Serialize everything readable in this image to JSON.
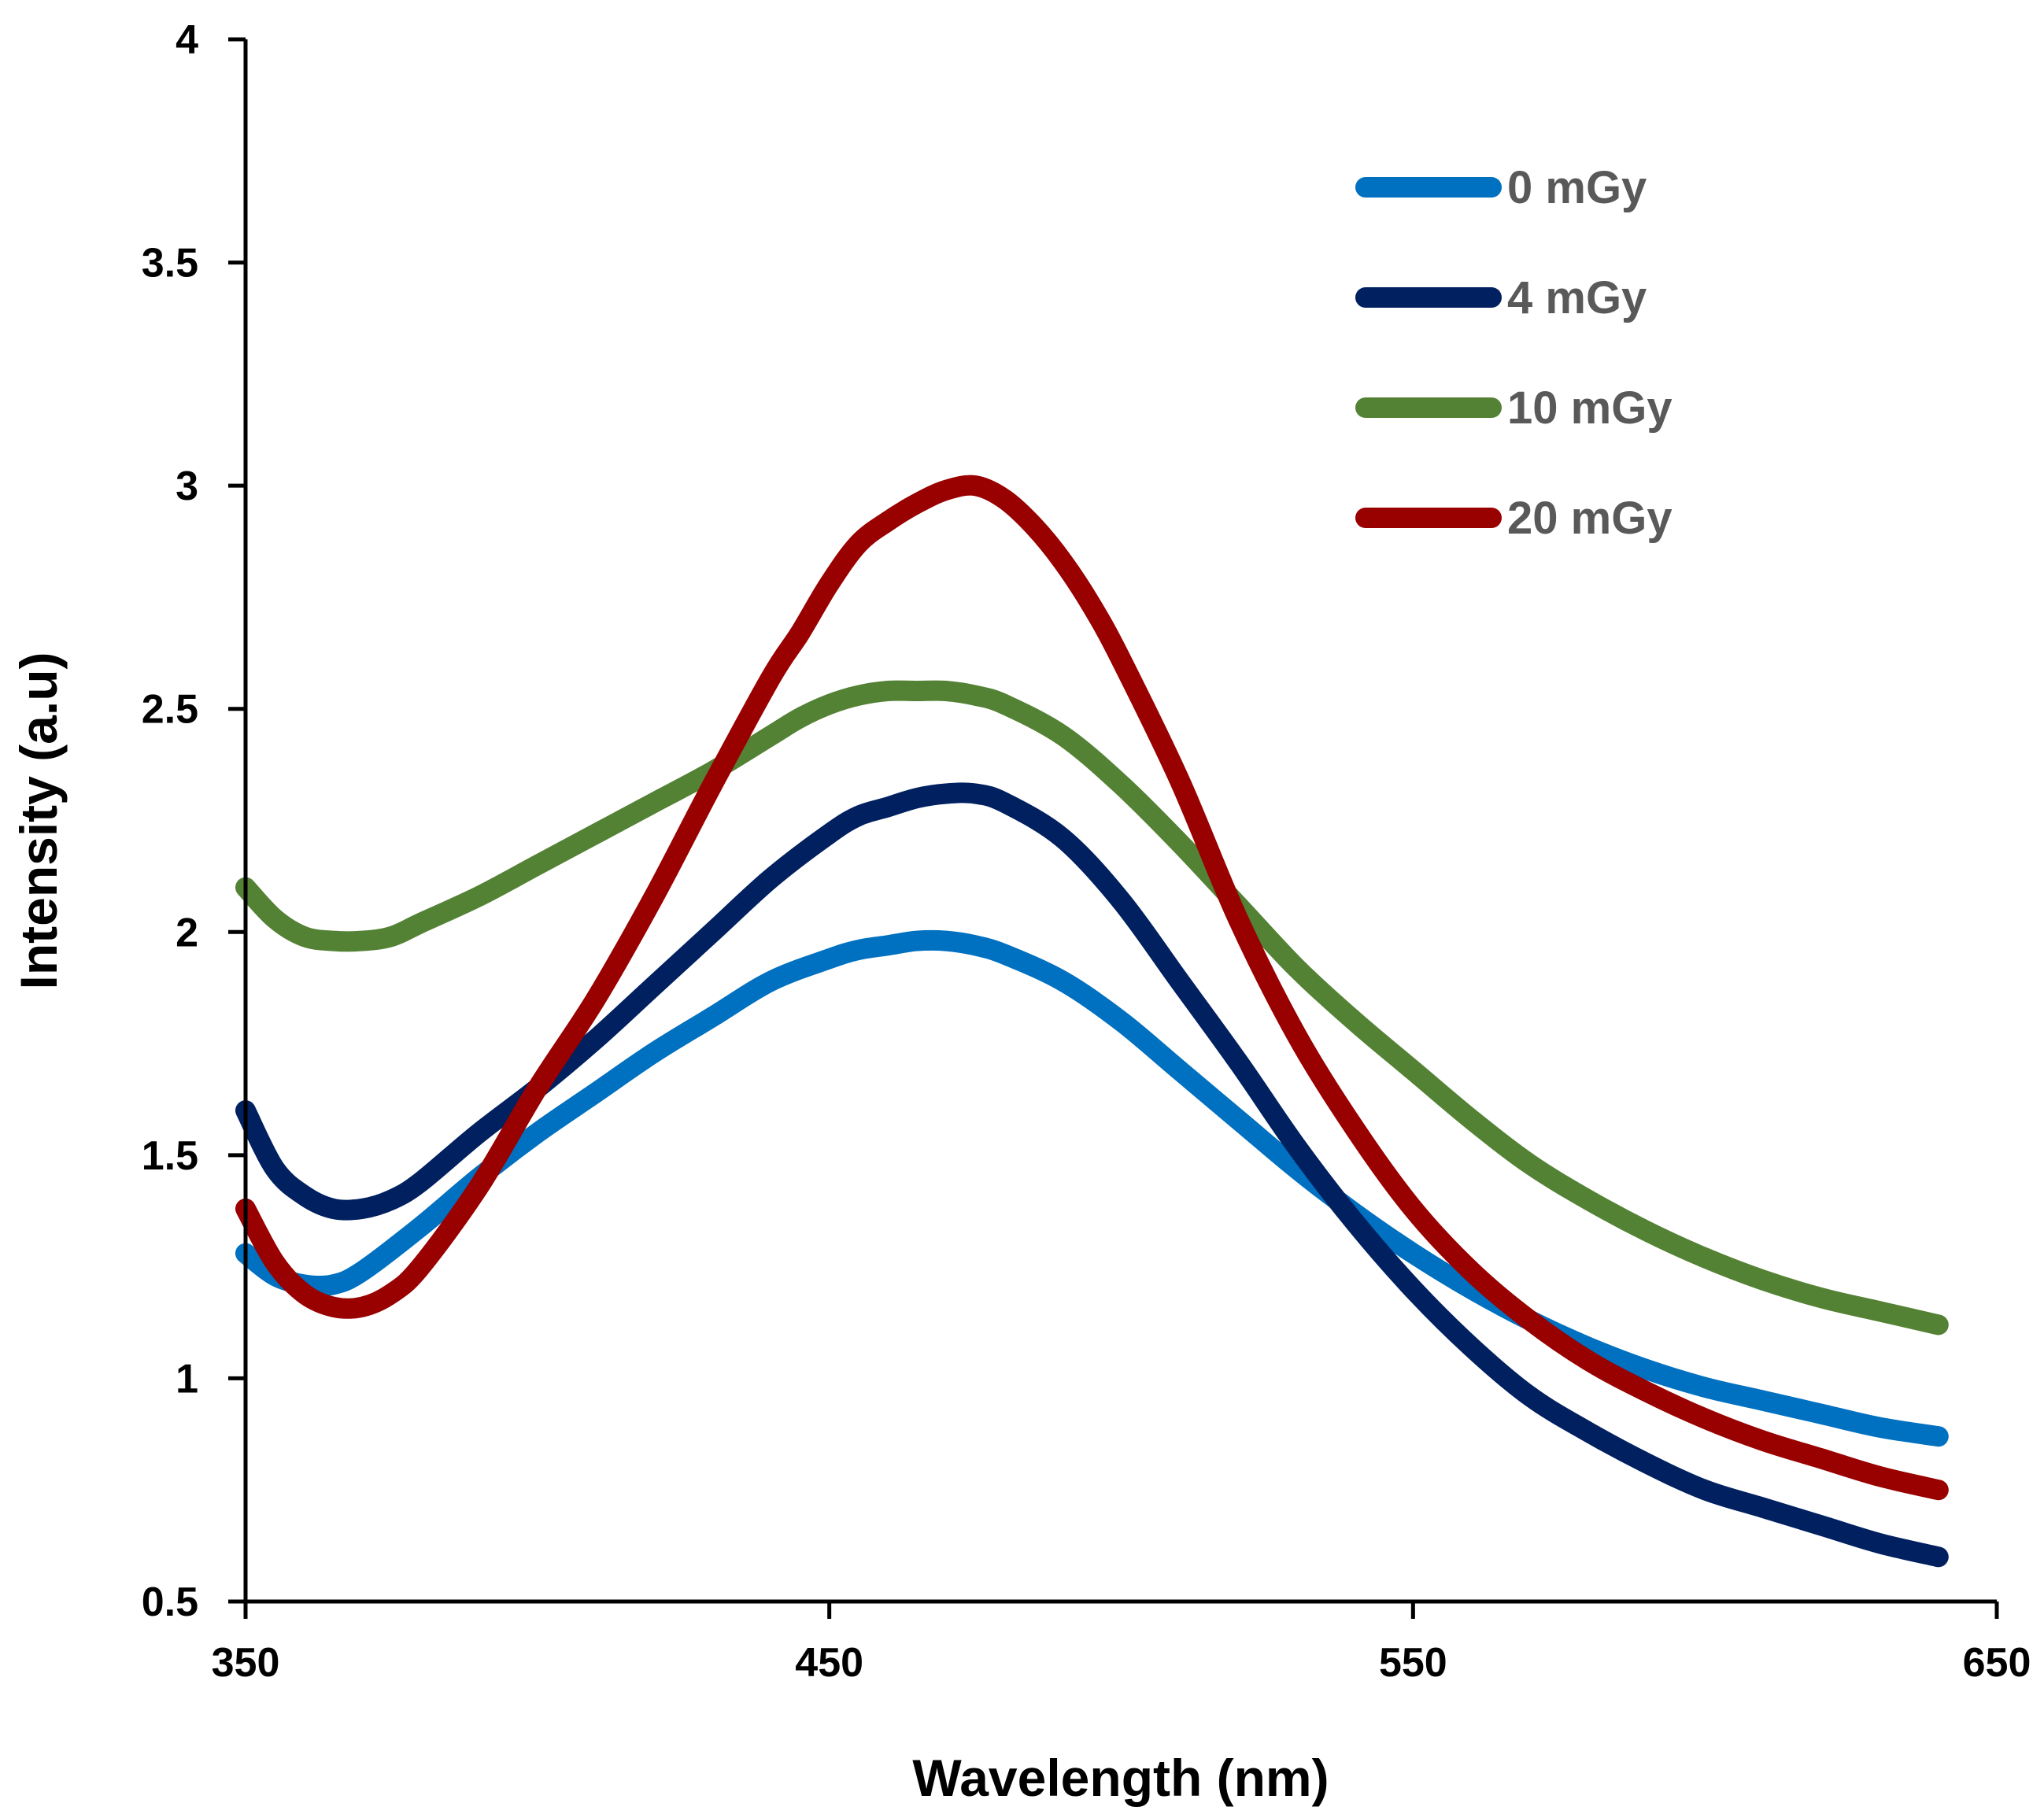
{
  "chart_data": {
    "type": "line",
    "title": "",
    "xlabel": "Wavelength (nm)",
    "ylabel": "Intensity (a.u)",
    "xlim": [
      350,
      650
    ],
    "ylim": [
      0.5,
      4
    ],
    "xticks": [
      350,
      450,
      550,
      650
    ],
    "xtick_labels": [
      "350",
      "450",
      "550",
      "650"
    ],
    "yticks": [
      0.5,
      1,
      1.5,
      2,
      2.5,
      3,
      3.5,
      4
    ],
    "ytick_labels": [
      "0.5",
      "1",
      "1.5",
      "2",
      "2.5",
      "3",
      "3.5",
      "4"
    ],
    "grid": false,
    "legend_position": "top-right",
    "series": [
      {
        "name": "0 mGy",
        "color": "#0070C0",
        "x": [
          350,
          355,
          360,
          365,
          370,
          380,
          390,
          400,
          410,
          420,
          430,
          440,
          450,
          455,
          460,
          465,
          470,
          475,
          480,
          490,
          500,
          510,
          520,
          530,
          540,
          550,
          560,
          570,
          580,
          590,
          600,
          610,
          620,
          630,
          640
        ],
        "y": [
          1.28,
          1.23,
          1.21,
          1.21,
          1.24,
          1.34,
          1.45,
          1.55,
          1.64,
          1.73,
          1.81,
          1.89,
          1.94,
          1.96,
          1.97,
          1.98,
          1.98,
          1.97,
          1.95,
          1.89,
          1.8,
          1.69,
          1.58,
          1.47,
          1.37,
          1.28,
          1.2,
          1.13,
          1.07,
          1.02,
          0.98,
          0.95,
          0.92,
          0.89,
          0.87
        ]
      },
      {
        "name": "4 mGy",
        "color": "#002060",
        "x": [
          350,
          355,
          360,
          365,
          370,
          375,
          380,
          390,
          400,
          410,
          420,
          430,
          440,
          450,
          455,
          460,
          465,
          470,
          475,
          480,
          490,
          500,
          510,
          520,
          530,
          540,
          550,
          560,
          570,
          580,
          590,
          600,
          610,
          620,
          630,
          640
        ],
        "y": [
          1.6,
          1.47,
          1.41,
          1.38,
          1.38,
          1.4,
          1.44,
          1.55,
          1.65,
          1.76,
          1.88,
          2.0,
          2.12,
          2.22,
          2.26,
          2.28,
          2.3,
          2.31,
          2.31,
          2.29,
          2.21,
          2.07,
          1.89,
          1.71,
          1.52,
          1.35,
          1.2,
          1.07,
          0.96,
          0.88,
          0.81,
          0.75,
          0.71,
          0.67,
          0.63,
          0.6
        ]
      },
      {
        "name": "10 mGy",
        "color": "#548235",
        "x": [
          350,
          355,
          360,
          365,
          370,
          375,
          380,
          390,
          400,
          410,
          420,
          430,
          440,
          445,
          450,
          455,
          460,
          465,
          470,
          475,
          480,
          490,
          500,
          510,
          520,
          530,
          540,
          550,
          560,
          570,
          580,
          590,
          600,
          610,
          620,
          630,
          640
        ],
        "y": [
          2.1,
          2.03,
          1.99,
          1.98,
          1.98,
          1.99,
          2.02,
          2.08,
          2.15,
          2.22,
          2.29,
          2.36,
          2.44,
          2.48,
          2.51,
          2.53,
          2.54,
          2.54,
          2.54,
          2.53,
          2.51,
          2.44,
          2.33,
          2.2,
          2.06,
          1.92,
          1.8,
          1.69,
          1.58,
          1.48,
          1.4,
          1.33,
          1.27,
          1.22,
          1.18,
          1.15,
          1.12
        ]
      },
      {
        "name": "20 mGy",
        "color": "#990000",
        "x": [
          350,
          355,
          360,
          365,
          370,
          375,
          380,
          390,
          400,
          410,
          420,
          430,
          440,
          445,
          450,
          455,
          460,
          465,
          470,
          475,
          480,
          485,
          490,
          495,
          500,
          510,
          520,
          530,
          540,
          550,
          560,
          570,
          580,
          590,
          600,
          610,
          620,
          630,
          640
        ],
        "y": [
          1.38,
          1.26,
          1.19,
          1.16,
          1.16,
          1.19,
          1.25,
          1.43,
          1.65,
          1.85,
          2.08,
          2.33,
          2.57,
          2.67,
          2.78,
          2.87,
          2.92,
          2.96,
          2.99,
          3.0,
          2.97,
          2.91,
          2.83,
          2.73,
          2.61,
          2.34,
          2.03,
          1.77,
          1.56,
          1.38,
          1.24,
          1.13,
          1.04,
          0.97,
          0.91,
          0.86,
          0.82,
          0.78,
          0.75
        ]
      }
    ]
  }
}
